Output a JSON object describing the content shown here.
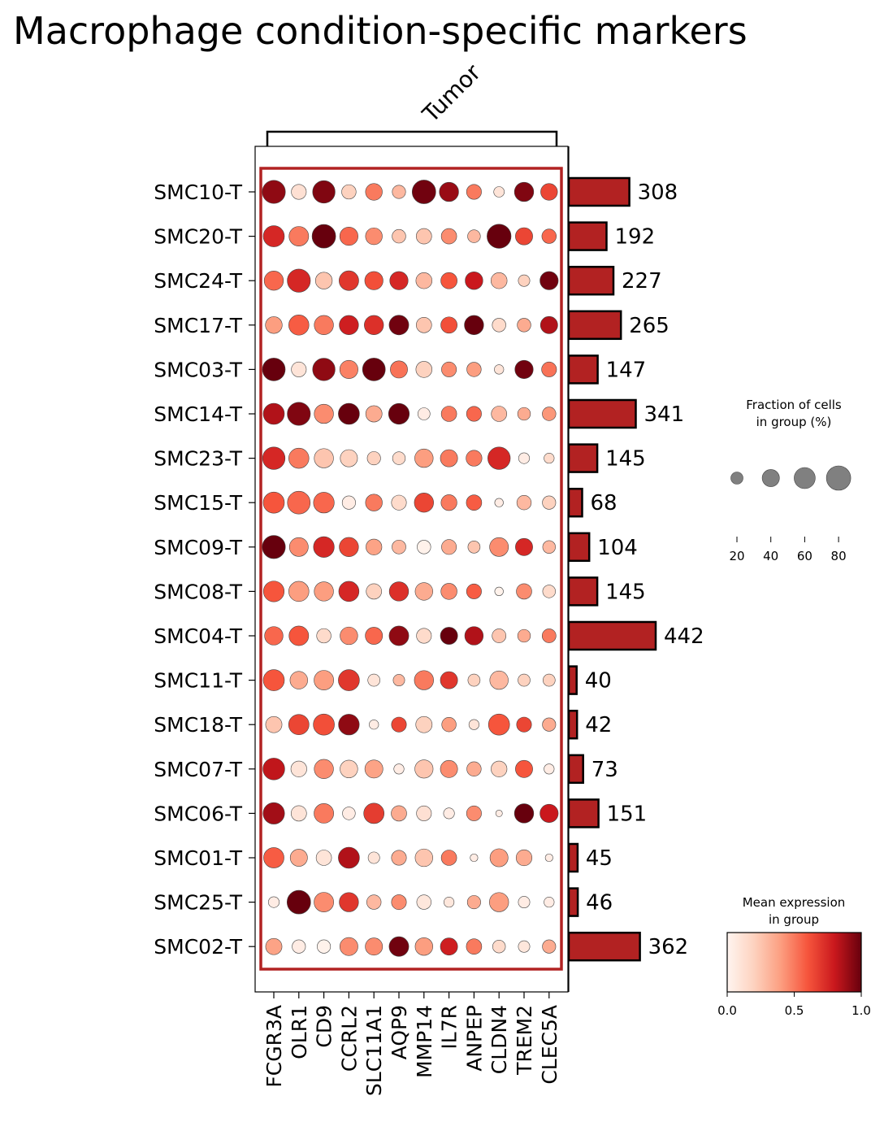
{
  "chart_data": {
    "type": "dotplot",
    "title": "Macrophage condition-specific markers",
    "group_label": "Tumor",
    "genes": [
      "FCGR3A",
      "OLR1",
      "CD9",
      "CCRL2",
      "SLC11A1",
      "AQP9",
      "MMP14",
      "IL7R",
      "ANPEP",
      "CLDN4",
      "TREM2",
      "CLEC5A"
    ],
    "samples": [
      "SMC10-T",
      "SMC20-T",
      "SMC24-T",
      "SMC17-T",
      "SMC03-T",
      "SMC14-T",
      "SMC23-T",
      "SMC15-T",
      "SMC09-T",
      "SMC08-T",
      "SMC04-T",
      "SMC11-T",
      "SMC18-T",
      "SMC07-T",
      "SMC06-T",
      "SMC01-T",
      "SMC25-T",
      "SMC02-T"
    ],
    "fraction_pct": [
      [
        72,
        30,
        68,
        28,
        38,
        24,
        75,
        50,
        30,
        15,
        50,
        38
      ],
      [
        60,
        52,
        75,
        45,
        38,
        25,
        32,
        32,
        22,
        78,
        40,
        28
      ],
      [
        50,
        72,
        38,
        52,
        45,
        45,
        35,
        36,
        42,
        35,
        18,
        45
      ],
      [
        38,
        55,
        50,
        50,
        50,
        52,
        32,
        36,
        50,
        25,
        25,
        40
      ],
      [
        70,
        30,
        68,
        45,
        70,
        40,
        35,
        30,
        28,
        12,
        45,
        30
      ],
      [
        60,
        72,
        50,
        60,
        36,
        58,
        20,
        32,
        30,
        32,
        22,
        25
      ],
      [
        68,
        55,
        50,
        40,
        24,
        22,
        46,
        40,
        34,
        68,
        16,
        14
      ],
      [
        60,
        70,
        58,
        24,
        38,
        30,
        50,
        34,
        32,
        10,
        28,
        24
      ],
      [
        72,
        48,
        58,
        50,
        34,
        26,
        25,
        30,
        20,
        48,
        40,
        22
      ],
      [
        58,
        55,
        50,
        55,
        32,
        50,
        42,
        35,
        30,
        10,
        32,
        22
      ],
      [
        46,
        52,
        28,
        42,
        40,
        52,
        30,
        40,
        46,
        26,
        22,
        26
      ],
      [
        60,
        42,
        52,
        60,
        20,
        18,
        50,
        40,
        20,
        46,
        20,
        20
      ],
      [
        36,
        56,
        60,
        58,
        12,
        30,
        36,
        28,
        14,
        60,
        30,
        24
      ],
      [
        64,
        34,
        50,
        42,
        44,
        14,
        45,
        40,
        28,
        34,
        40,
        14
      ],
      [
        62,
        32,
        52,
        22,
        56,
        32,
        30,
        16,
        30,
        6,
        50,
        45
      ],
      [
        56,
        40,
        32,
        60,
        18,
        30,
        42,
        32,
        8,
        44,
        34,
        8
      ],
      [
        16,
        75,
        52,
        50,
        28,
        30,
        28,
        14,
        24,
        50,
        18,
        14
      ],
      [
        36,
        24,
        24,
        44,
        40,
        52,
        42,
        40,
        32,
        22,
        18,
        24
      ]
    ],
    "mean_expression": [
      [
        0.92,
        0.12,
        0.95,
        0.2,
        0.5,
        0.3,
        0.98,
        0.9,
        0.5,
        0.1,
        0.95,
        0.65
      ],
      [
        0.75,
        0.5,
        1.0,
        0.55,
        0.45,
        0.25,
        0.25,
        0.45,
        0.3,
        1.0,
        0.65,
        0.55
      ],
      [
        0.55,
        0.75,
        0.25,
        0.7,
        0.62,
        0.75,
        0.3,
        0.6,
        0.8,
        0.3,
        0.2,
        0.98
      ],
      [
        0.4,
        0.58,
        0.5,
        0.78,
        0.72,
        0.98,
        0.25,
        0.62,
        1.0,
        0.15,
        0.35,
        0.85
      ],
      [
        1.0,
        0.1,
        0.92,
        0.48,
        1.0,
        0.52,
        0.2,
        0.45,
        0.4,
        0.1,
        0.98,
        0.52
      ],
      [
        0.85,
        0.95,
        0.45,
        1.0,
        0.35,
        1.0,
        0.05,
        0.5,
        0.55,
        0.3,
        0.35,
        0.42
      ],
      [
        0.75,
        0.5,
        0.25,
        0.2,
        0.2,
        0.15,
        0.4,
        0.5,
        0.5,
        0.75,
        0.05,
        0.15
      ],
      [
        0.6,
        0.55,
        0.55,
        0.05,
        0.5,
        0.15,
        0.65,
        0.5,
        0.58,
        0.05,
        0.3,
        0.2
      ],
      [
        1.0,
        0.45,
        0.75,
        0.65,
        0.38,
        0.3,
        0.02,
        0.35,
        0.25,
        0.45,
        0.75,
        0.3
      ],
      [
        0.6,
        0.4,
        0.4,
        0.75,
        0.2,
        0.72,
        0.35,
        0.45,
        0.58,
        0.02,
        0.45,
        0.15
      ],
      [
        0.55,
        0.6,
        0.15,
        0.45,
        0.55,
        0.92,
        0.15,
        1.0,
        0.85,
        0.25,
        0.35,
        0.5
      ],
      [
        0.6,
        0.35,
        0.4,
        0.7,
        0.1,
        0.3,
        0.5,
        0.7,
        0.2,
        0.3,
        0.2,
        0.2
      ],
      [
        0.25,
        0.65,
        0.62,
        0.92,
        0.05,
        0.65,
        0.2,
        0.4,
        0.1,
        0.6,
        0.65,
        0.35
      ],
      [
        0.82,
        0.1,
        0.45,
        0.2,
        0.38,
        0.05,
        0.25,
        0.45,
        0.35,
        0.2,
        0.6,
        0.05
      ],
      [
        0.88,
        0.1,
        0.5,
        0.05,
        0.68,
        0.35,
        0.12,
        0.05,
        0.45,
        0.05,
        1.0,
        0.8
      ],
      [
        0.58,
        0.35,
        0.1,
        0.85,
        0.1,
        0.35,
        0.25,
        0.5,
        0.05,
        0.4,
        0.35,
        0.05
      ],
      [
        0.05,
        1.0,
        0.45,
        0.7,
        0.3,
        0.45,
        0.08,
        0.08,
        0.35,
        0.4,
        0.05,
        0.05
      ],
      [
        0.38,
        0.05,
        0.02,
        0.45,
        0.45,
        0.98,
        0.4,
        0.78,
        0.5,
        0.15,
        0.08,
        0.35
      ]
    ],
    "cell_counts": [
      308,
      192,
      227,
      265,
      147,
      341,
      145,
      68,
      104,
      145,
      442,
      40,
      42,
      73,
      151,
      45,
      46,
      362
    ],
    "size_legend": {
      "title_line1": "Fraction of cells",
      "title_line2": "in group (%)",
      "values": [
        20,
        40,
        60,
        80
      ]
    },
    "color_legend": {
      "title_line1": "Mean expression",
      "title_line2": "in group",
      "ticks": [
        "0.0",
        "0.5",
        "1.0"
      ],
      "colormap": [
        "#fff5f0",
        "#fdd2bf",
        "#fc9e80",
        "#f6553c",
        "#ca181d",
        "#67000d"
      ]
    },
    "bar_color": "#b22222",
    "highlight_color": "#b22222"
  }
}
